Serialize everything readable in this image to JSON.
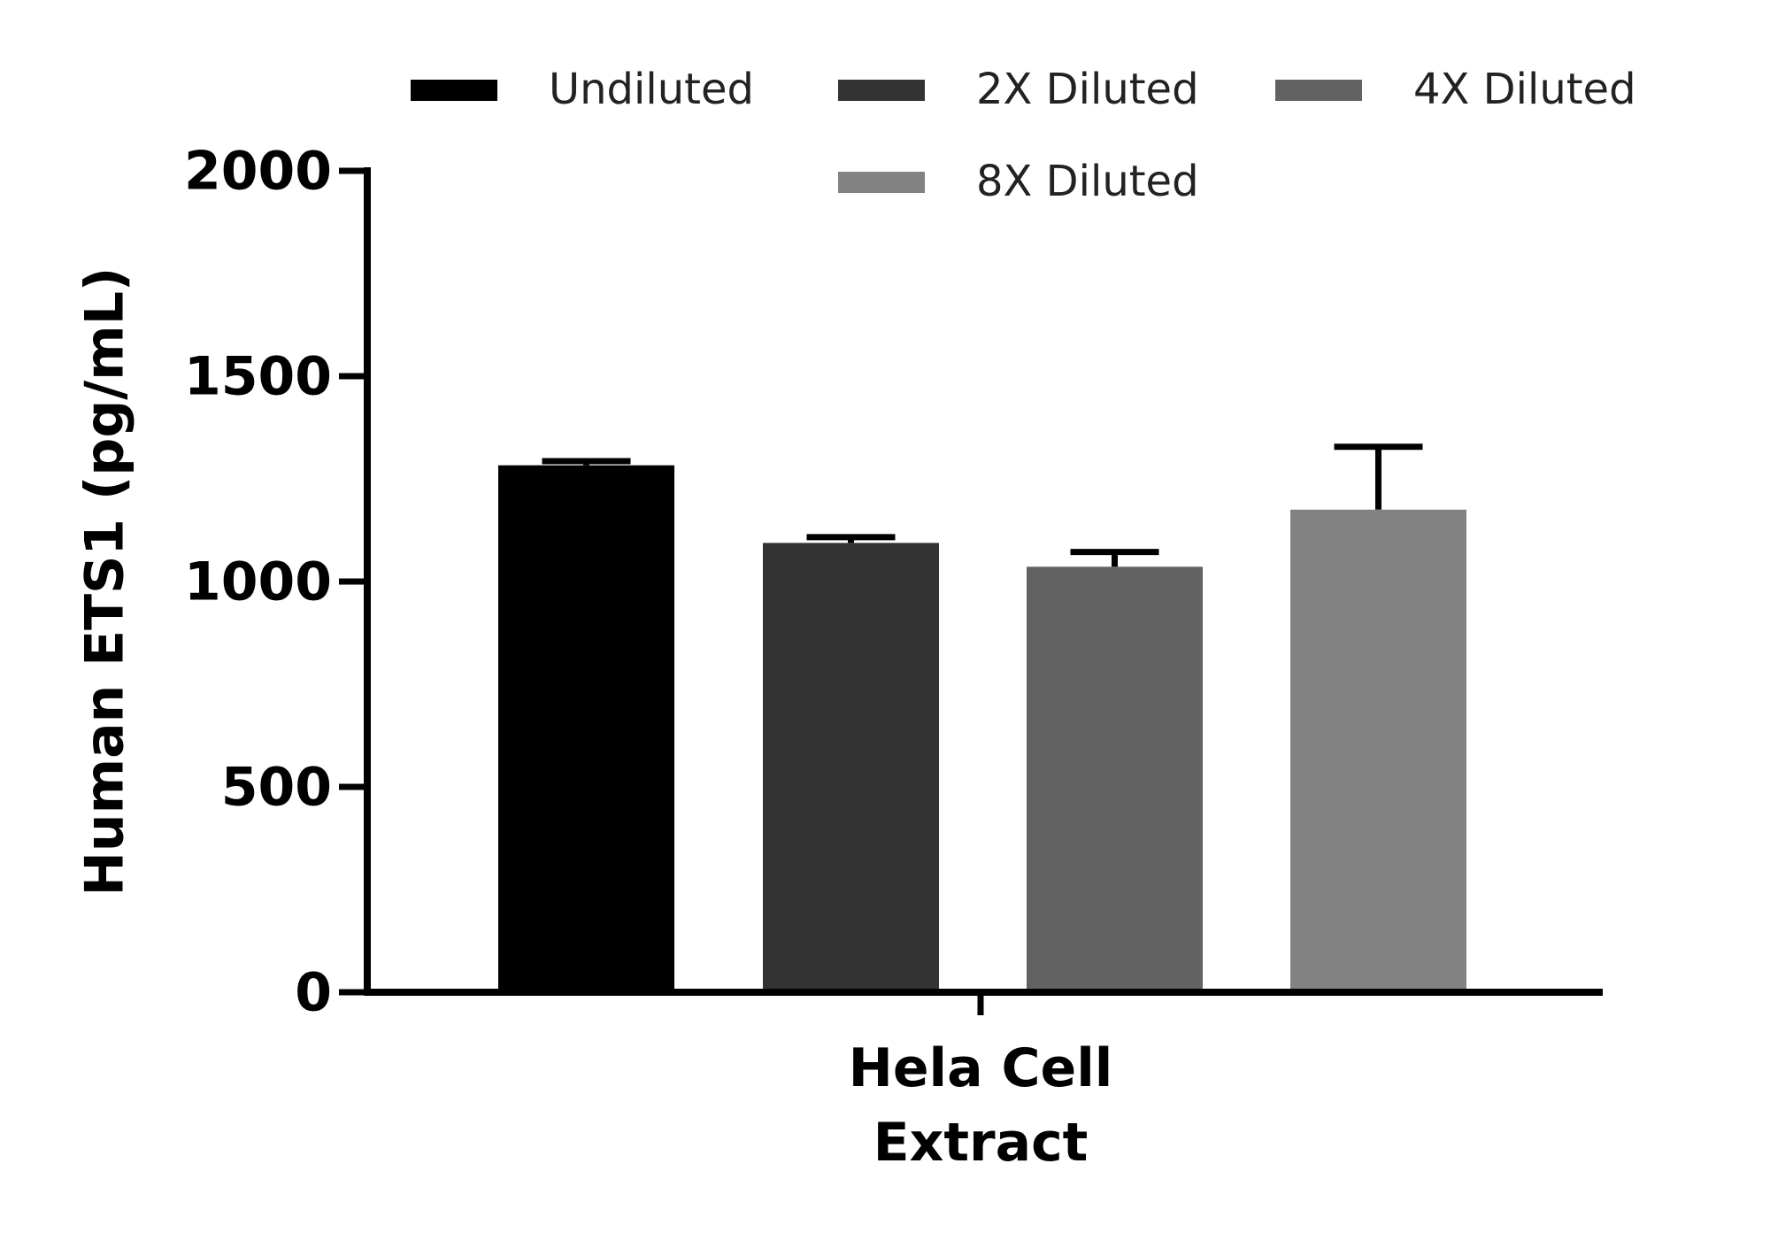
{
  "chart_data": {
    "type": "bar",
    "y_label": "Human ETS1 (pg/mL)",
    "categories": [
      "Hela Cell Extract"
    ],
    "series": [
      {
        "name": "Undiluted",
        "color": "#000000",
        "values": [
          1283
        ],
        "errors": [
          10
        ]
      },
      {
        "name": "2X Diluted",
        "color": "#333333",
        "values": [
          1094
        ],
        "errors": [
          14
        ]
      },
      {
        "name": "4X Diluted",
        "color": "#626262",
        "values": [
          1036
        ],
        "errors": [
          36
        ]
      },
      {
        "name": "8X Diluted",
        "color": "#828282",
        "values": [
          1175
        ],
        "errors": [
          153
        ]
      }
    ],
    "ylim": [
      0,
      2000
    ],
    "yticks": [
      0,
      500,
      1000,
      1500,
      2000
    ],
    "grid": false
  }
}
